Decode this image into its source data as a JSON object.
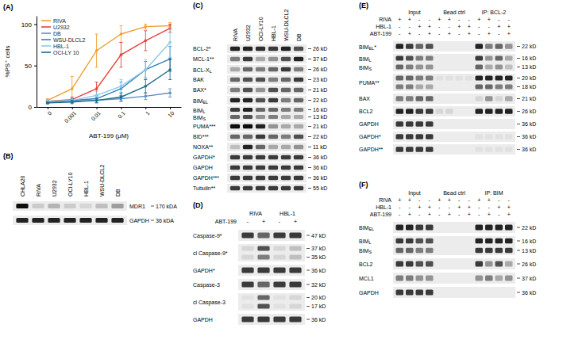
{
  "chart_data": {
    "type": "line",
    "panel_label": "(A)",
    "x_label": "ABT-199 (μM)",
    "y_label": "%PS⁺ cells",
    "categories": [
      "0",
      "0.001",
      "0.01",
      "0.1",
      "1",
      "10"
    ],
    "ylim": [
      0,
      110
    ],
    "yticks": [
      0,
      50,
      100
    ],
    "grid": false,
    "legend": "upper-left",
    "marker": "circle",
    "series": [
      {
        "name": "RIVA",
        "color": "#f0a033",
        "values": [
          8,
          22,
          68,
          88,
          97,
          98
        ],
        "errors": [
          2,
          15,
          20,
          10,
          3,
          4
        ]
      },
      {
        "name": "U2932",
        "color": "#e8413c",
        "values": [
          7,
          9,
          22,
          63,
          80,
          95
        ],
        "errors": [
          1,
          3,
          8,
          15,
          12,
          5
        ]
      },
      {
        "name": "DB",
        "color": "#5b8fc7",
        "values": [
          6,
          7,
          8,
          10,
          13,
          17
        ],
        "errors": [
          2,
          2,
          3,
          3,
          4,
          5
        ]
      },
      {
        "name": "WSU-DLCL2",
        "color": "#2f7fb8",
        "values": [
          5,
          8,
          10,
          22,
          45,
          58
        ],
        "errors": [
          1,
          2,
          3,
          8,
          10,
          15
        ]
      },
      {
        "name": "HBL-1",
        "color": "#8cc8e8",
        "values": [
          7,
          8,
          14,
          25,
          45,
          78
        ],
        "errors": [
          2,
          3,
          5,
          8,
          12,
          18
        ]
      },
      {
        "name": "OCI-LY 10",
        "color": "#1c6e8c",
        "values": [
          5,
          6,
          8,
          12,
          25,
          45
        ],
        "errors": [
          1,
          2,
          3,
          5,
          8,
          12
        ]
      }
    ]
  },
  "blots": [
    {
      "label": "(B)",
      "lanes": [
        "CHLA20",
        "RIVA",
        "U2932",
        "OCI-LY10",
        "HBL-1",
        "WSU-DLCL2",
        "DB"
      ],
      "rows": [
        {
          "labels": [
            "MDR1"
          ],
          "kda": [
            "170 kDA"
          ],
          "bands": [
            [
              1.0,
              0.15,
              0.25,
              0.15,
              0.1,
              0.2,
              0.35
            ]
          ]
        },
        {
          "labels": [
            "GAPDH"
          ],
          "kda": [
            "36 kDA"
          ],
          "bands": [
            [
              0.9,
              0.9,
              0.9,
              0.9,
              0.9,
              0.9,
              0.9
            ]
          ]
        }
      ]
    },
    {
      "label": "(C)",
      "lanes": [
        "RIVA",
        "U2932",
        "OCI-LY10",
        "HBL-1",
        "WSU-DLCL2",
        "DB"
      ],
      "rows": [
        {
          "labels": [
            "BCL-2*"
          ],
          "kda": [
            "26 kD"
          ],
          "bands": [
            [
              0.9,
              0.9,
              0.85,
              0.8,
              0.9,
              0.7
            ]
          ]
        },
        {
          "labels": [
            "MCL-1**"
          ],
          "kda": [
            "37 kD"
          ],
          "bands": [
            [
              0.5,
              0.8,
              0.3,
              0.4,
              0.7,
              0.9
            ]
          ]
        },
        {
          "labels": [
            {
              "text": "BCL-X",
              "sub": "L"
            }
          ],
          "kda": [
            "26 kD"
          ],
          "bands": [
            [
              0.3,
              0.6,
              0.5,
              0.6,
              0.8,
              0.5
            ]
          ]
        },
        {
          "labels": [
            "BAK"
          ],
          "kda": [
            "23 kD"
          ],
          "bands": [
            [
              0.6,
              0.7,
              0.7,
              0.5,
              0.6,
              0.8
            ]
          ]
        },
        {
          "labels": [
            "BAX*"
          ],
          "kda": [
            "21 kD"
          ],
          "bands": [
            [
              0.5,
              0.7,
              0.4,
              0.7,
              0.6,
              0.6
            ]
          ]
        },
        {
          "labels": [
            {
              "text": "BIM",
              "sub": "EL"
            }
          ],
          "kda": [
            "22 kD"
          ],
          "bands": [
            [
              0.9,
              0.9,
              0.7,
              0.8,
              0.5,
              0.6
            ]
          ]
        },
        {
          "labels": [
            {
              "text": "BIM",
              "sub": "L"
            },
            {
              "text": "BIM",
              "sub": "S"
            }
          ],
          "kda": [
            "16 kD",
            "13 kD"
          ],
          "bands": [
            [
              0.8,
              0.9,
              0.6,
              0.6,
              0.5,
              0.5
            ],
            [
              0.6,
              0.7,
              0.4,
              0.5,
              0.3,
              0.3
            ]
          ]
        },
        {
          "labels": [
            "PUMA***"
          ],
          "kda": [
            "21 kD"
          ],
          "bands": [
            [
              1.0,
              1.0,
              0.9,
              0.4,
              0.3,
              0.3
            ]
          ]
        },
        {
          "labels": [
            "BID***"
          ],
          "kda": [
            "22 kD"
          ],
          "bands": [
            [
              0.6,
              0.6,
              0.8,
              0.6,
              0.5,
              0.7
            ]
          ]
        },
        {
          "labels": [
            "NOXA**"
          ],
          "kda": [
            "11 kD"
          ],
          "bands": [
            [
              0.2,
              0.9,
              0.6,
              0.3,
              0.3,
              0.4
            ]
          ]
        },
        {
          "labels": [
            "GAPDH*"
          ],
          "kda": [
            "36 kD"
          ],
          "bands": [
            [
              0.8,
              0.8,
              0.8,
              0.8,
              0.8,
              0.8
            ]
          ]
        },
        {
          "labels": [
            "GAPDH"
          ],
          "kda": [
            "36 kD"
          ],
          "bands": [
            [
              0.8,
              0.8,
              0.8,
              0.8,
              0.8,
              0.8
            ]
          ]
        },
        {
          "labels": [
            "GAPDH***"
          ],
          "kda": [
            "36 kD"
          ],
          "bands": [
            [
              0.8,
              0.8,
              0.8,
              0.8,
              0.8,
              0.8
            ]
          ]
        },
        {
          "labels": [
            "Tubulin**"
          ],
          "kda": [
            "55 kD"
          ],
          "bands": [
            [
              0.8,
              0.8,
              0.8,
              0.8,
              0.8,
              0.8
            ]
          ]
        }
      ]
    },
    {
      "label": "(D)",
      "groups": [
        {
          "text": "RIVA",
          "span": 2
        },
        {
          "text": "HBL-1",
          "span": 2
        }
      ],
      "conditions": [
        {
          "name": "ABT-199",
          "signs": [
            "-",
            "+",
            "-",
            "+"
          ]
        }
      ],
      "rows": [
        {
          "labels": [
            "Caspase-9*"
          ],
          "kda": [
            "47 kD"
          ],
          "bands": [
            [
              0.8,
              0.6,
              0.8,
              0.8
            ]
          ]
        },
        {
          "labels": [
            "cl Caspase-9*"
          ],
          "kda": [
            "37 kD",
            "35 kD"
          ],
          "bands": [
            [
              0.1,
              0.7,
              0.1,
              0.2
            ],
            [
              0.1,
              0.5,
              0.1,
              0.2
            ]
          ]
        },
        {
          "labels": [
            "GAPDH*"
          ],
          "kda": [
            "36 kD"
          ],
          "bands": [
            [
              0.8,
              0.8,
              0.8,
              0.8
            ]
          ]
        },
        {
          "labels": [
            "Caspase-3"
          ],
          "kda": [
            "32 kD"
          ],
          "bands": [
            [
              0.8,
              0.6,
              0.8,
              0.8
            ]
          ]
        },
        {
          "labels": [
            "cl Caspase-3"
          ],
          "kda": [
            "20 kD",
            "17 kD"
          ],
          "bands": [
            [
              0.05,
              0.6,
              0.05,
              0.1
            ],
            [
              0.05,
              0.7,
              0.05,
              0.1
            ]
          ]
        },
        {
          "labels": [
            "GAPDH"
          ],
          "kda": [
            "36 kD"
          ],
          "bands": [
            [
              0.8,
              0.8,
              0.8,
              0.8
            ]
          ]
        }
      ]
    },
    {
      "label": "(E)",
      "groups": [
        {
          "text": "Input",
          "span": 4
        },
        {
          "text": "Bead ctrl",
          "span": 4
        },
        {
          "text": "IP: BCL-2",
          "span": 4
        }
      ],
      "conditions": [
        {
          "name": "RIVA",
          "signs": [
            "+",
            "+",
            "-",
            "-",
            "+",
            "+",
            "-",
            "-",
            "+",
            "+",
            "-",
            "-"
          ]
        },
        {
          "name": "HBL-1",
          "signs": [
            "-",
            "-",
            "+",
            "+",
            "-",
            "-",
            "+",
            "+",
            "-",
            "-",
            "+",
            "+"
          ]
        },
        {
          "name": "ABT-199",
          "signs": [
            "-",
            "+",
            "-",
            "+",
            "-",
            "+",
            "-",
            "+",
            "-",
            "+",
            "-",
            "+"
          ]
        }
      ],
      "rows": [
        {
          "labels": [
            {
              "text": "BIM",
              "sub": "EL",
              "suffix": "*"
            }
          ],
          "kda": [
            "22 kD"
          ],
          "bands": [
            [
              0.9,
              0.8,
              0.6,
              0.7,
              0,
              0,
              0,
              0,
              0.9,
              0.5,
              0.6,
              0.4
            ]
          ]
        },
        {
          "labels": [
            {
              "text": "BIM",
              "sub": "L"
            },
            {
              "text": "BIM",
              "sub": "S"
            }
          ],
          "kda": [
            "16 kD",
            "13 kD"
          ],
          "bands": [
            [
              0.8,
              0.7,
              0.5,
              0.5,
              0,
              0,
              0,
              0,
              0.8,
              0.4,
              0.6,
              0.3
            ],
            [
              0.6,
              0.5,
              0.4,
              0.4,
              0,
              0,
              0,
              0,
              0.6,
              0.3,
              0.4,
              0.2
            ]
          ]
        },
        {
          "labels": [
            "PUMA**"
          ],
          "kda": [
            "20 kD",
            "18 kD"
          ],
          "bands": [
            [
              0.6,
              0.6,
              0.5,
              0.5,
              0.05,
              0.05,
              0.05,
              0.05,
              0.9,
              0.9,
              0.9,
              0.9
            ],
            [
              0.5,
              0.5,
              0.3,
              0.3,
              0,
              0,
              0,
              0,
              0.6,
              0.6,
              0.5,
              0.5
            ]
          ]
        },
        {
          "labels": [
            "BAX"
          ],
          "kda": [
            "21 kD"
          ],
          "bands": [
            [
              0.5,
              0.5,
              0.6,
              0.6,
              0,
              0,
              0,
              0,
              0.1,
              0.4,
              0.1,
              0.3
            ]
          ]
        },
        {
          "labels": [
            "BCL2"
          ],
          "kda": [
            "26 kD"
          ],
          "bands": [
            [
              0.9,
              0.9,
              0.8,
              0.8,
              0.1,
              0.1,
              0,
              0,
              0.9,
              0.9,
              0.9,
              0.9
            ]
          ]
        },
        {
          "labels": [
            "GAPDH"
          ],
          "kda": [
            "36 kD"
          ],
          "bands": [
            [
              0.8,
              0.8,
              0.8,
              0.8,
              0,
              0,
              0,
              0,
              0,
              0,
              0,
              0
            ]
          ]
        },
        {
          "labels": [
            "GAPDH*"
          ],
          "kda": [
            "36 kD"
          ],
          "bands": [
            [
              0.8,
              0.8,
              0.8,
              0.8,
              0,
              0,
              0,
              0,
              0.05,
              0.05,
              0.05,
              0.05
            ]
          ]
        },
        {
          "labels": [
            "GAPDH**"
          ],
          "kda": [
            "36 kD"
          ],
          "bands": [
            [
              0.8,
              0.8,
              0.8,
              0.8,
              0,
              0,
              0,
              0,
              0.05,
              0.05,
              0.05,
              0.05
            ]
          ]
        }
      ]
    },
    {
      "label": "(F)",
      "groups": [
        {
          "text": "Input",
          "span": 4
        },
        {
          "text": "Bead ctrl",
          "span": 4
        },
        {
          "text": "IP: BIM",
          "span": 4
        }
      ],
      "conditions": [
        {
          "name": "RIVA",
          "signs": [
            "+",
            "+",
            "-",
            "-",
            "+",
            "+",
            "-",
            "-",
            "+",
            "+",
            "-",
            "-"
          ]
        },
        {
          "name": "HBL-1",
          "signs": [
            "-",
            "-",
            "+",
            "+",
            "-",
            "-",
            "+",
            "+",
            "-",
            "-",
            "+",
            "+"
          ]
        },
        {
          "name": "ABT-199",
          "signs": [
            "-",
            "+",
            "-",
            "+",
            "-",
            "+",
            "-",
            "+",
            "-",
            "+",
            "-",
            "+"
          ]
        }
      ],
      "rows": [
        {
          "labels": [
            {
              "text": "BIM",
              "sub": "EL"
            }
          ],
          "kda": [
            "22 kD"
          ],
          "bands": [
            [
              0.9,
              0.9,
              0.8,
              0.8,
              0,
              0,
              0,
              0,
              0.9,
              0.9,
              0.9,
              0.9
            ]
          ]
        },
        {
          "labels": [
            {
              "text": "BIM",
              "sub": "L"
            },
            {
              "text": "BIM",
              "sub": "S"
            }
          ],
          "kda": [
            "16 kD",
            "13 kD"
          ],
          "bands": [
            [
              0.8,
              0.8,
              0.7,
              0.7,
              0,
              0,
              0,
              0,
              0.9,
              0.9,
              0.9,
              0.9
            ],
            [
              0.6,
              0.6,
              0.5,
              0.5,
              0,
              0,
              0,
              0,
              0.8,
              0.8,
              0.8,
              0.8
            ]
          ]
        },
        {
          "labels": [
            "BCL2"
          ],
          "kda": [
            "26 kD"
          ],
          "bands": [
            [
              0.8,
              0.8,
              0.7,
              0.7,
              0,
              0,
              0,
              0,
              0.8,
              0.4,
              0.7,
              0.3
            ]
          ]
        },
        {
          "labels": [
            "MCL1"
          ],
          "kda": [
            "37 kD"
          ],
          "bands": [
            [
              0.5,
              0.5,
              0.4,
              0.4,
              0,
              0,
              0,
              0,
              0.4,
              0.5,
              0.3,
              0.4
            ]
          ]
        },
        {
          "labels": [
            "GAPDH"
          ],
          "kda": [
            "36 kD"
          ],
          "bands": [
            [
              0.8,
              0.8,
              0.8,
              0.8,
              0,
              0,
              0,
              0,
              0,
              0,
              0,
              0
            ]
          ]
        }
      ]
    }
  ]
}
